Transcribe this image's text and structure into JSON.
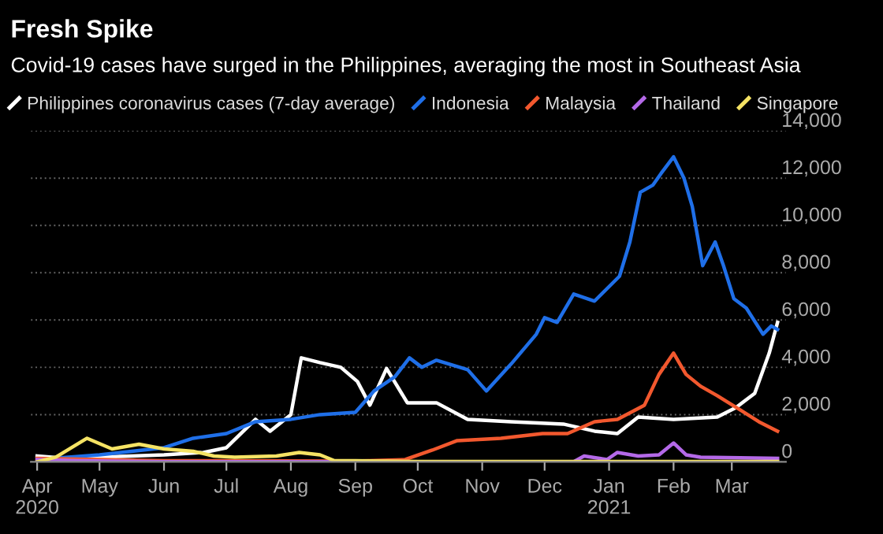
{
  "chart_data": {
    "type": "line",
    "title": "Fresh Spike",
    "subtitle": "Covid-19 cases have surged in the Philippines, averaging the most in Southeast Asia",
    "xlim": [
      "2020-03-29",
      "2021-03-27"
    ],
    "xticks": [
      {
        "value": "2020-04-01",
        "label": "Apr\n2020"
      },
      {
        "value": "2020-05-01",
        "label": "May"
      },
      {
        "value": "2020-06-01",
        "label": "Jun"
      },
      {
        "value": "2020-07-01",
        "label": "Jul"
      },
      {
        "value": "2020-08-01",
        "label": "Aug"
      },
      {
        "value": "2020-09-01",
        "label": "Sep"
      },
      {
        "value": "2020-10-01",
        "label": "Oct"
      },
      {
        "value": "2020-11-01",
        "label": "Nov"
      },
      {
        "value": "2020-12-01",
        "label": "Dec"
      },
      {
        "value": "2021-01-01",
        "label": "Jan\n2021"
      },
      {
        "value": "2021-02-01",
        "label": "Feb"
      },
      {
        "value": "2021-03-01",
        "label": "Mar"
      }
    ],
    "ylim": [
      0,
      14000
    ],
    "yticks": [
      {
        "value": 0,
        "label": "0"
      },
      {
        "value": 2000,
        "label": "2,000"
      },
      {
        "value": 4000,
        "label": "4,000"
      },
      {
        "value": 6000,
        "label": "6,000"
      },
      {
        "value": 8000,
        "label": "8,000"
      },
      {
        "value": 10000,
        "label": "10,000"
      },
      {
        "value": 12000,
        "label": "12,000"
      },
      {
        "value": 14000,
        "label": "14,000"
      }
    ],
    "grid": "y",
    "legend": "top left",
    "series": [
      {
        "name": "Philippines coronavirus cases (7-day average)",
        "color": "#ffffff",
        "x": [
          "2020-04-01",
          "2020-04-15",
          "2020-05-01",
          "2020-06-01",
          "2020-06-20",
          "2020-07-01",
          "2020-07-15",
          "2020-07-22",
          "2020-08-01",
          "2020-08-06",
          "2020-08-15",
          "2020-08-25",
          "2020-09-02",
          "2020-09-08",
          "2020-09-16",
          "2020-09-26",
          "2020-10-10",
          "2020-10-25",
          "2020-11-15",
          "2020-12-10",
          "2020-12-25",
          "2021-01-05",
          "2021-01-15",
          "2021-02-01",
          "2021-02-22",
          "2021-03-03",
          "2021-03-12",
          "2021-03-19",
          "2021-03-23"
        ],
        "values": [
          250,
          150,
          200,
          300,
          400,
          600,
          1800,
          1300,
          2000,
          4400,
          4200,
          4000,
          3400,
          2400,
          3950,
          2500,
          2500,
          1800,
          1700,
          1600,
          1300,
          1200,
          1900,
          1800,
          1900,
          2300,
          2900,
          4600,
          5900
        ]
      },
      {
        "name": "Indonesia",
        "color": "#1f6fe8",
        "x": [
          "2020-04-01",
          "2020-05-01",
          "2020-06-01",
          "2020-06-15",
          "2020-07-01",
          "2020-07-15",
          "2020-08-01",
          "2020-08-15",
          "2020-09-01",
          "2020-09-10",
          "2020-09-20",
          "2020-09-27",
          "2020-10-03",
          "2020-10-10",
          "2020-10-25",
          "2020-11-03",
          "2020-11-15",
          "2020-11-27",
          "2020-12-01",
          "2020-12-07",
          "2020-12-15",
          "2020-12-25",
          "2021-01-06",
          "2021-01-11",
          "2021-01-16",
          "2021-01-22",
          "2021-01-26",
          "2021-02-01",
          "2021-02-06",
          "2021-02-10",
          "2021-02-15",
          "2021-02-21",
          "2021-02-25",
          "2021-03-02",
          "2021-03-08",
          "2021-03-16",
          "2021-03-20",
          "2021-03-23"
        ],
        "values": [
          100,
          300,
          600,
          1000,
          1200,
          1700,
          1800,
          2000,
          2100,
          3000,
          3600,
          4400,
          4000,
          4300,
          3900,
          3000,
          4150,
          5400,
          6100,
          5900,
          7100,
          6800,
          7850,
          9300,
          11400,
          11700,
          12200,
          12900,
          12000,
          10800,
          8300,
          9300,
          8300,
          6900,
          6500,
          5400,
          5750,
          5600
        ]
      },
      {
        "name": "Malaysia",
        "color": "#f2582e",
        "x": [
          "2020-04-01",
          "2020-06-01",
          "2020-09-01",
          "2020-09-25",
          "2020-10-08",
          "2020-10-20",
          "2020-11-10",
          "2020-11-30",
          "2020-12-12",
          "2020-12-25",
          "2021-01-05",
          "2021-01-18",
          "2021-01-25",
          "2021-02-01",
          "2021-02-07",
          "2021-02-14",
          "2021-02-22",
          "2021-03-05",
          "2021-03-14",
          "2021-03-23"
        ],
        "values": [
          150,
          50,
          30,
          100,
          500,
          900,
          1000,
          1200,
          1200,
          1700,
          1800,
          2400,
          3700,
          4600,
          3700,
          3200,
          2800,
          2200,
          1700,
          1300
        ]
      },
      {
        "name": "Thailand",
        "color": "#b469e8",
        "x": [
          "2020-04-01",
          "2020-04-20",
          "2020-06-01",
          "2020-12-15",
          "2020-12-20",
          "2020-12-31",
          "2021-01-05",
          "2021-01-15",
          "2021-01-25",
          "2021-02-01",
          "2021-02-07",
          "2021-02-14",
          "2021-03-23"
        ],
        "values": [
          100,
          50,
          10,
          10,
          250,
          100,
          400,
          250,
          300,
          800,
          300,
          200,
          150
        ]
      },
      {
        "name": "Singapore",
        "color": "#f5e364",
        "x": [
          "2020-04-01",
          "2020-04-10",
          "2020-04-25",
          "2020-05-07",
          "2020-05-20",
          "2020-06-01",
          "2020-06-15",
          "2020-06-25",
          "2020-07-05",
          "2020-07-25",
          "2020-08-05",
          "2020-08-15",
          "2020-08-22",
          "2020-09-01",
          "2020-10-01",
          "2021-03-23"
        ],
        "values": [
          0,
          200,
          1000,
          550,
          750,
          550,
          450,
          250,
          200,
          250,
          400,
          300,
          50,
          50,
          20,
          20
        ]
      }
    ]
  }
}
